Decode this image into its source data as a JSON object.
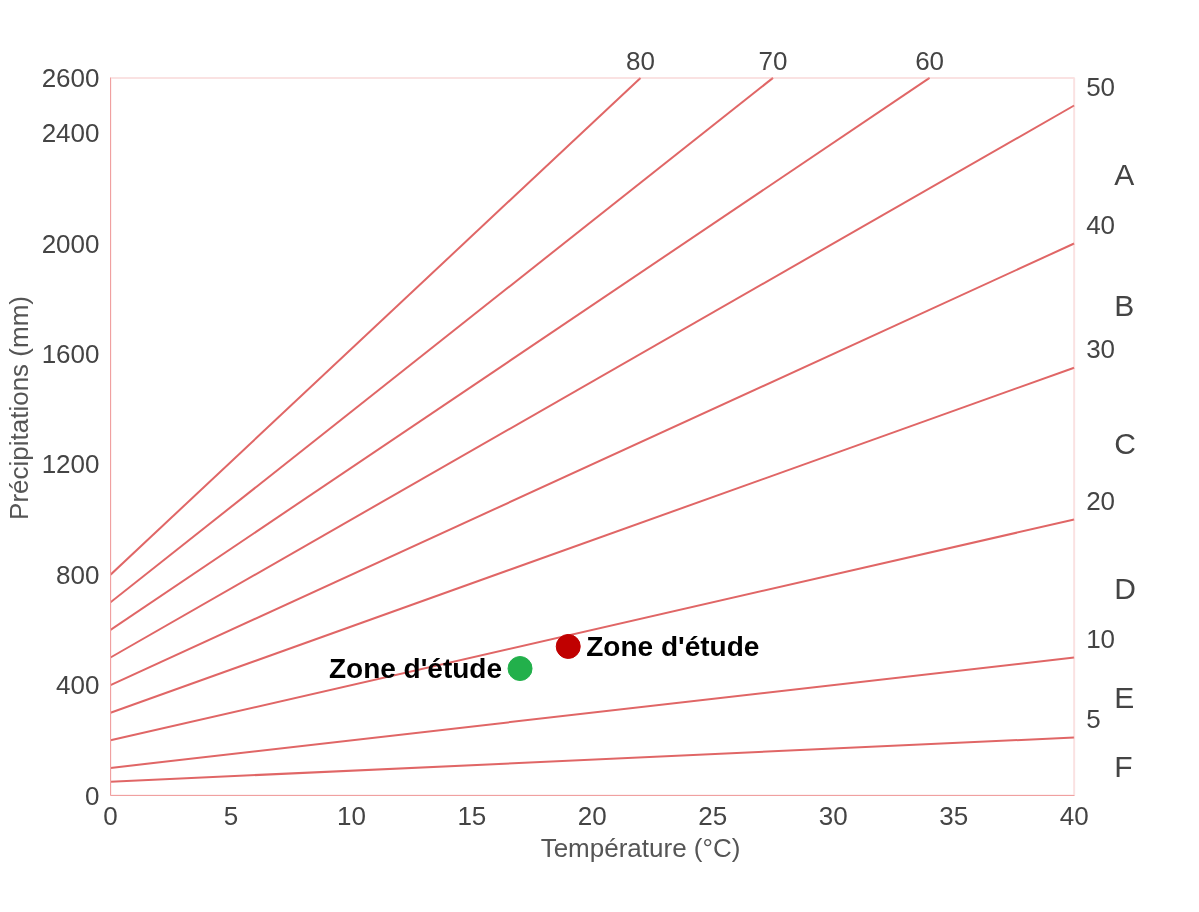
{
  "chart_data": {
    "type": "line",
    "xlabel": "Température (°C)",
    "ylabel": "Précipitations (mm)",
    "xlim": [
      0,
      40
    ],
    "ylim": [
      0,
      2600
    ],
    "xticks": [
      0,
      5,
      10,
      15,
      20,
      25,
      30,
      35,
      40
    ],
    "yticks": [
      0,
      400,
      800,
      1200,
      1600,
      2000,
      2400,
      2600
    ],
    "grid": false,
    "marker": "none",
    "line_style": "solid",
    "series": [
      {
        "name": "80",
        "color": "#e06666",
        "x": [
          0,
          22
        ],
        "values": [
          800,
          2600
        ]
      },
      {
        "name": "70",
        "color": "#e06666",
        "x": [
          0,
          27.5
        ],
        "values": [
          700,
          2600
        ]
      },
      {
        "name": "60",
        "color": "#e06666",
        "x": [
          0,
          34
        ],
        "values": [
          600,
          2600
        ]
      },
      {
        "name": "50",
        "color": "#e06666",
        "x": [
          0,
          40
        ],
        "values": [
          500,
          2500
        ]
      },
      {
        "name": "40",
        "color": "#e06666",
        "x": [
          0,
          40
        ],
        "values": [
          400,
          2000
        ]
      },
      {
        "name": "30",
        "color": "#e06666",
        "x": [
          0,
          40
        ],
        "values": [
          300,
          1550
        ]
      },
      {
        "name": "20",
        "color": "#e06666",
        "x": [
          0,
          40
        ],
        "values": [
          200,
          1000
        ]
      },
      {
        "name": "10",
        "color": "#e06666",
        "x": [
          0,
          40
        ],
        "values": [
          100,
          500
        ]
      },
      {
        "name": "5",
        "color": "#e06666",
        "x": [
          0,
          40
        ],
        "values": [
          50,
          210
        ]
      },
      {
        "name": "Zone d'étude",
        "type": "scatter",
        "marker": "circle",
        "color": "#22b04b",
        "x": [
          17
        ],
        "values": [
          460
        ]
      },
      {
        "name": "Zone d'étude",
        "type": "scatter",
        "marker": "circle",
        "color": "#c00000",
        "x": [
          19
        ],
        "values": [
          540
        ]
      }
    ],
    "annotations": [
      "A",
      "B",
      "C",
      "D",
      "E",
      "F"
    ]
  }
}
